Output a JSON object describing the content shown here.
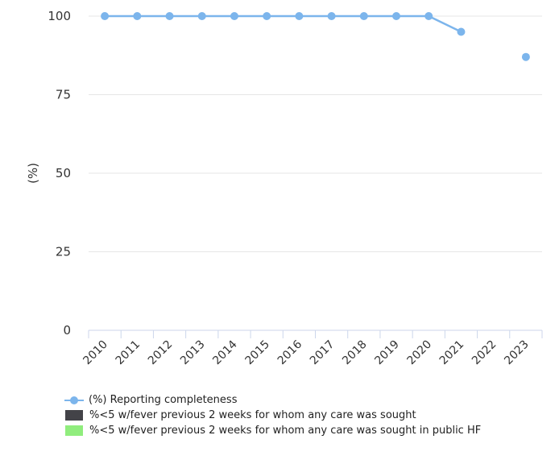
{
  "chart_data": {
    "type": "line",
    "title": "",
    "xlabel": "",
    "ylabel": "(%)",
    "categories": [
      "2010",
      "2011",
      "2012",
      "2013",
      "2014",
      "2015",
      "2016",
      "2017",
      "2018",
      "2019",
      "2020",
      "2021",
      "2022",
      "2023"
    ],
    "ylim": [
      0,
      100
    ],
    "yticks": [
      0,
      25,
      50,
      75,
      100
    ],
    "grid": true,
    "legend_position": "bottom-left",
    "series": [
      {
        "name": "(%) Reporting completeness",
        "color": "#7cb5ec",
        "values": [
          100,
          100,
          100,
          100,
          100,
          100,
          100,
          100,
          100,
          100,
          100,
          95,
          null,
          87
        ]
      },
      {
        "name": "%<5 w/fever previous 2 weeks for whom any care was sought",
        "color": "#434348",
        "values": [
          null,
          null,
          null,
          null,
          null,
          null,
          null,
          null,
          null,
          null,
          null,
          null,
          null,
          null
        ]
      },
      {
        "name": "%<5 w/fever previous 2 weeks for whom any care was sought in public HF",
        "color": "#90ed7d",
        "values": [
          null,
          null,
          null,
          null,
          null,
          null,
          null,
          null,
          null,
          null,
          null,
          null,
          null,
          null
        ]
      }
    ]
  }
}
